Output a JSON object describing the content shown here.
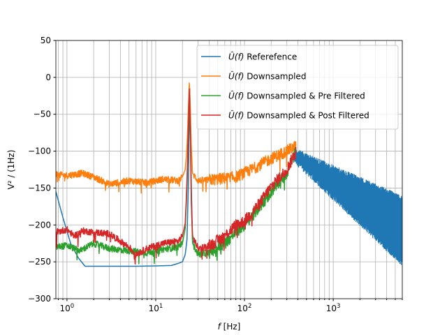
{
  "chart_data": {
    "type": "line",
    "xscale": "log",
    "xlim": [
      0.75,
      6000
    ],
    "ylim": [
      -300,
      50
    ],
    "grid": true,
    "grid_minor_x": true,
    "legend_position": "top-right",
    "xlabel_prefix": "f",
    "xlabel_unit": "[Hz]",
    "ylabel": "V² / (1Hz)",
    "x_ticks": [
      {
        "value": 1,
        "base": "10",
        "exp": "0"
      },
      {
        "value": 10,
        "base": "10",
        "exp": "1"
      },
      {
        "value": 100,
        "base": "10",
        "exp": "2"
      },
      {
        "value": 1000,
        "base": "10",
        "exp": "3"
      }
    ],
    "y_ticks": [
      50,
      0,
      -50,
      -100,
      -150,
      -200,
      -250,
      -300
    ],
    "legend_symbol": "Û(f)",
    "series": [
      {
        "name": "Referefence",
        "color": "#1f77b4",
        "points": [
          [
            0.75,
            -155
          ],
          [
            0.9,
            -190
          ],
          [
            1.1,
            -225
          ],
          [
            1.35,
            -245
          ],
          [
            1.6,
            -256
          ],
          [
            3,
            -256
          ],
          [
            6,
            -256
          ],
          [
            10,
            -255.5
          ],
          [
            15,
            -255
          ],
          [
            18,
            -252
          ],
          [
            20,
            -250
          ],
          [
            21.5,
            -240
          ],
          [
            22.5,
            -220
          ],
          [
            23.3,
            -150
          ],
          [
            23.8,
            -70
          ],
          [
            24.2,
            -15
          ],
          [
            24.6,
            -70
          ],
          [
            25.2,
            -150
          ],
          [
            26,
            -220
          ],
          [
            27,
            -230
          ]
        ],
        "noise_band": {
          "x_start": 360,
          "x_end": 6000,
          "upper_start": -95,
          "upper_end": -160,
          "lower_start": -110,
          "lower_end": -250
        }
      },
      {
        "name": "Downsampled",
        "color": "#ff7f0e",
        "points": [
          [
            0.75,
            -132
          ],
          [
            1,
            -133
          ],
          [
            1.5,
            -130
          ],
          [
            2,
            -135
          ],
          [
            3,
            -145
          ],
          [
            5,
            -140
          ],
          [
            8,
            -143
          ],
          [
            12,
            -138
          ],
          [
            18,
            -140
          ],
          [
            20,
            -135
          ],
          [
            21.5,
            -125
          ],
          [
            22.5,
            -95
          ],
          [
            23.3,
            -45
          ],
          [
            23.9,
            -5
          ],
          [
            24.5,
            -40
          ],
          [
            25.2,
            -95
          ],
          [
            26,
            -130
          ],
          [
            30,
            -140
          ],
          [
            50,
            -138
          ],
          [
            80,
            -135
          ],
          [
            120,
            -125
          ],
          [
            200,
            -110
          ],
          [
            300,
            -100
          ],
          [
            380,
            -93
          ]
        ]
      },
      {
        "name": "Downsampled & Pre Filtered",
        "color": "#2ca02c",
        "points": [
          [
            0.75,
            -230
          ],
          [
            1,
            -228
          ],
          [
            1.4,
            -235
          ],
          [
            2,
            -225
          ],
          [
            3,
            -232
          ],
          [
            5,
            -235
          ],
          [
            8,
            -238
          ],
          [
            12,
            -233
          ],
          [
            18,
            -230
          ],
          [
            20,
            -225
          ],
          [
            21.5,
            -205
          ],
          [
            22.5,
            -150
          ],
          [
            23.3,
            -80
          ],
          [
            24,
            -20
          ],
          [
            24.6,
            -80
          ],
          [
            25.3,
            -180
          ],
          [
            26,
            -225
          ],
          [
            30,
            -240
          ],
          [
            40,
            -238
          ],
          [
            60,
            -225
          ],
          [
            80,
            -210
          ],
          [
            100,
            -200
          ],
          [
            150,
            -175
          ],
          [
            200,
            -155
          ],
          [
            300,
            -130
          ],
          [
            380,
            -100
          ]
        ]
      },
      {
        "name": "Downsampled & Post Filtered",
        "color": "#d62728",
        "points": [
          [
            0.75,
            -210
          ],
          [
            1,
            -206
          ],
          [
            1.2,
            -215
          ],
          [
            1.5,
            -208
          ],
          [
            2,
            -210
          ],
          [
            3,
            -212
          ],
          [
            5,
            -230
          ],
          [
            6,
            -240
          ],
          [
            8,
            -232
          ],
          [
            12,
            -225
          ],
          [
            18,
            -222
          ],
          [
            20,
            -215
          ],
          [
            21.5,
            -198
          ],
          [
            22.5,
            -140
          ],
          [
            23.3,
            -70
          ],
          [
            23.9,
            -12
          ],
          [
            24.5,
            -70
          ],
          [
            25.2,
            -170
          ],
          [
            26,
            -215
          ],
          [
            30,
            -232
          ],
          [
            40,
            -228
          ],
          [
            60,
            -215
          ],
          [
            80,
            -200
          ],
          [
            100,
            -195
          ],
          [
            150,
            -170
          ],
          [
            200,
            -148
          ],
          [
            300,
            -125
          ],
          [
            380,
            -100
          ]
        ]
      }
    ]
  }
}
